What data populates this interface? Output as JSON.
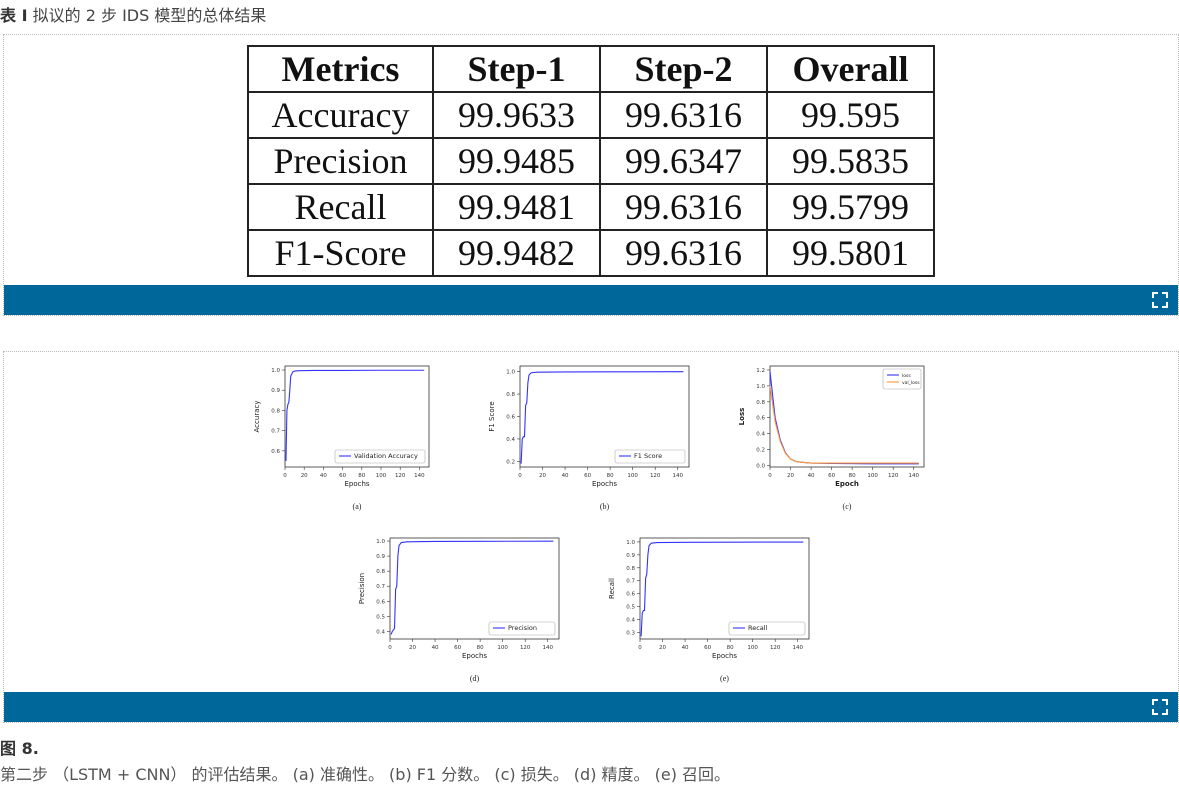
{
  "table_caption": {
    "label": "表 I",
    "text": "拟议的 2 步 IDS 模型的总体结果"
  },
  "table": {
    "headers": [
      "Metrics",
      "Step-1",
      "Step-2",
      "Overall"
    ],
    "rows": [
      [
        "Accuracy",
        "99.9633",
        "99.6316",
        "99.595"
      ],
      [
        "Precision",
        "99.9485",
        "99.6347",
        "99.5835"
      ],
      [
        "Recall",
        "99.9481",
        "99.6316",
        "99.5799"
      ],
      [
        "F1-Score",
        "99.9482",
        "99.6316",
        "99.5801"
      ]
    ]
  },
  "figure_caption": {
    "label": "图 8.",
    "text": "第二步 （LSTM + CNN） 的评估结果。 (a)  准确性。 (b)  F1 分数。 (c)  损失。 (d)  精度。 (e)  召回。"
  },
  "colors": {
    "bar": "#00679a",
    "line_blue": "#3333ff",
    "line_orange": "#ff9933"
  },
  "chart_data": [
    {
      "type": "line",
      "sublabel": "(a)",
      "xlabel": "Epochs",
      "ylabel": "Accuracy",
      "xlim": [
        0,
        150
      ],
      "ylim": [
        0.52,
        1.02
      ],
      "xticks": [
        0,
        20,
        40,
        60,
        80,
        100,
        120,
        140
      ],
      "yticks": [
        0.6,
        0.7,
        0.8,
        0.9,
        1.0
      ],
      "series": [
        {
          "name": "Validation Accuracy",
          "x": [
            1,
            2,
            3,
            4,
            5,
            6,
            8,
            10,
            15,
            30,
            60,
            100,
            145
          ],
          "y": [
            0.55,
            0.8,
            0.83,
            0.84,
            0.9,
            0.97,
            0.99,
            0.995,
            0.997,
            0.998,
            0.998,
            0.999,
            0.999
          ]
        }
      ]
    },
    {
      "type": "line",
      "sublabel": "(b)",
      "xlabel": "Epochs",
      "ylabel": "F1 Score",
      "xlim": [
        0,
        150
      ],
      "ylim": [
        0.15,
        1.05
      ],
      "xticks": [
        0,
        20,
        40,
        60,
        80,
        100,
        120,
        140
      ],
      "yticks": [
        0.2,
        0.4,
        0.6,
        0.8,
        1.0
      ],
      "series": [
        {
          "name": "F1 Score",
          "x": [
            1,
            2,
            3,
            4,
            5,
            6,
            7,
            8,
            10,
            15,
            40,
            80,
            145
          ],
          "y": [
            0.18,
            0.4,
            0.42,
            0.42,
            0.7,
            0.72,
            0.9,
            0.97,
            0.99,
            0.995,
            0.997,
            0.998,
            0.999
          ]
        }
      ]
    },
    {
      "type": "line",
      "sublabel": "(c)",
      "xlabel": "Epoch",
      "ylabel": "Loss",
      "xlim": [
        0,
        150
      ],
      "ylim": [
        -0.02,
        1.25
      ],
      "xticks": [
        0,
        20,
        40,
        60,
        80,
        100,
        120,
        140
      ],
      "yticks": [
        0.0,
        0.2,
        0.4,
        0.6,
        0.8,
        1.0,
        1.2
      ],
      "series": [
        {
          "name": "loss",
          "x": [
            0,
            5,
            10,
            15,
            20,
            25,
            30,
            40,
            60,
            100,
            145
          ],
          "y": [
            1.18,
            0.6,
            0.32,
            0.16,
            0.08,
            0.05,
            0.04,
            0.03,
            0.025,
            0.02,
            0.02
          ]
        },
        {
          "name": "val_loss",
          "x": [
            0,
            5,
            10,
            15,
            20,
            25,
            30,
            40,
            60,
            100,
            145
          ],
          "y": [
            1.0,
            0.55,
            0.3,
            0.15,
            0.08,
            0.05,
            0.04,
            0.03,
            0.03,
            0.03,
            0.03
          ]
        }
      ]
    },
    {
      "type": "line",
      "sublabel": "(d)",
      "xlabel": "Epochs",
      "ylabel": "Precision",
      "xlim": [
        0,
        150
      ],
      "ylim": [
        0.35,
        1.02
      ],
      "xticks": [
        0,
        20,
        40,
        60,
        80,
        100,
        120,
        140
      ],
      "yticks": [
        0.4,
        0.5,
        0.6,
        0.7,
        0.8,
        0.9,
        1.0
      ],
      "series": [
        {
          "name": "Precision",
          "x": [
            1,
            2,
            3,
            4,
            5,
            6,
            7,
            8,
            10,
            15,
            40,
            80,
            145
          ],
          "y": [
            0.38,
            0.4,
            0.41,
            0.42,
            0.68,
            0.7,
            0.9,
            0.97,
            0.99,
            0.995,
            0.997,
            0.998,
            0.999
          ]
        }
      ]
    },
    {
      "type": "line",
      "sublabel": "(e)",
      "xlabel": "Epochs",
      "ylabel": "Recall",
      "xlim": [
        0,
        150
      ],
      "ylim": [
        0.25,
        1.03
      ],
      "xticks": [
        0,
        20,
        40,
        60,
        80,
        100,
        120,
        140
      ],
      "yticks": [
        0.3,
        0.4,
        0.5,
        0.6,
        0.7,
        0.8,
        0.9,
        1.0
      ],
      "series": [
        {
          "name": "Recall",
          "x": [
            1,
            2,
            3,
            4,
            5,
            6,
            7,
            8,
            10,
            15,
            40,
            80,
            145
          ],
          "y": [
            0.27,
            0.45,
            0.47,
            0.47,
            0.72,
            0.75,
            0.9,
            0.97,
            0.99,
            0.995,
            0.997,
            0.998,
            0.999
          ]
        }
      ]
    }
  ]
}
